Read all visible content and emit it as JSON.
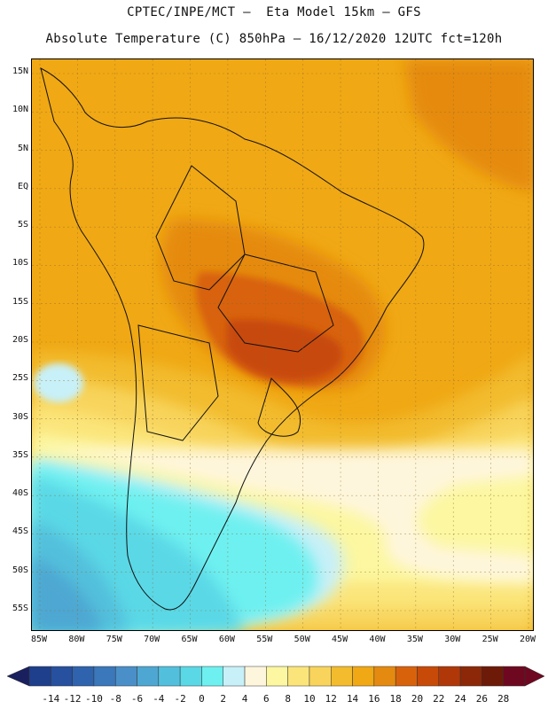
{
  "header": {
    "line1": "CPTEC/INPE/MCT –  Eta Model 15km – GFS",
    "line2": "Absolute Temperature (C) 850hPa – 16/12/2020 12UTC fct=120h"
  },
  "map": {
    "lat_labels": [
      "15N",
      "10N",
      "5N",
      "EQ",
      "5S",
      "10S",
      "15S",
      "20S",
      "25S",
      "30S",
      "35S",
      "40S",
      "45S",
      "50S",
      "55S"
    ],
    "lon_labels": [
      "85W",
      "80W",
      "75W",
      "70W",
      "65W",
      "60W",
      "55W",
      "50W",
      "45W",
      "40W",
      "35W",
      "30W",
      "25W",
      "20W"
    ],
    "background_level": 18
  },
  "colorbar": {
    "labels": [
      "-14",
      "-12",
      "-10",
      "-8",
      "-6",
      "-4",
      "-2",
      "0",
      "2",
      "4",
      "6",
      "8",
      "10",
      "12",
      "14",
      "16",
      "18",
      "20",
      "22",
      "24",
      "26",
      "28"
    ],
    "colors": [
      "#1e3f8c",
      "#27509e",
      "#3063ad",
      "#3a77bb",
      "#4a8fc8",
      "#4ea7d2",
      "#52c0dc",
      "#5ad8e6",
      "#6ef0f0",
      "#c8f0f8",
      "#fef6dc",
      "#fcf7a0",
      "#fbe57a",
      "#f8d45c",
      "#f2bc2e",
      "#f0a814",
      "#e58a10",
      "#d8620c",
      "#c84a08",
      "#b03808",
      "#8c2808",
      "#6e1a08",
      "#6e0820"
    ],
    "under_color": "#1a1f5e",
    "over_color": "#6e0820"
  }
}
